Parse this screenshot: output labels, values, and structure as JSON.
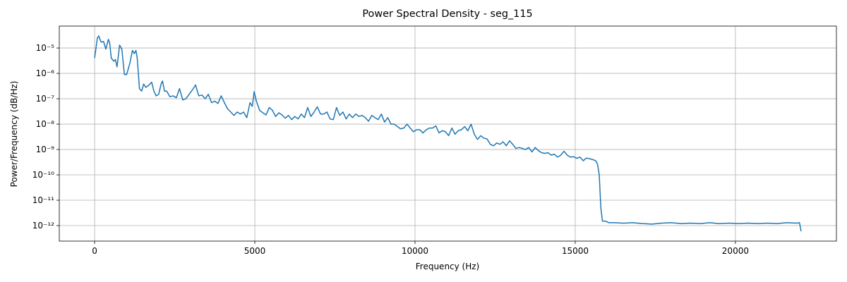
{
  "chart_data": {
    "type": "line",
    "title": "Power Spectral Density - seg_115",
    "x_label": "Frequency (Hz)",
    "y_label": "Power/Frequency (dB/Hz)",
    "y_scale": "log",
    "grid": true,
    "color": "#1f77b4",
    "xlim": [
      -1102.5,
      23152.5
    ],
    "ylim": [
      2.45e-13,
      7.3e-05
    ],
    "xticks": [
      0,
      5000,
      10000,
      15000,
      20000
    ],
    "yticks": [
      {
        "value": 1e-12,
        "label": "10⁻¹²"
      },
      {
        "value": 1e-11,
        "label": "10⁻¹¹"
      },
      {
        "value": 1e-10,
        "label": "10⁻¹⁰"
      },
      {
        "value": 1e-09,
        "label": "10⁻⁹"
      },
      {
        "value": 1e-08,
        "label": "10⁻⁸"
      },
      {
        "value": 1e-07,
        "label": "10⁻⁷"
      },
      {
        "value": 1e-06,
        "label": "10⁻⁶"
      },
      {
        "value": 1e-05,
        "label": "10⁻⁵"
      }
    ],
    "x": [
      0,
      86,
      129,
      200,
      280,
      350,
      430,
      470,
      520,
      600,
      650,
      700,
      780,
      850,
      930,
      1000,
      1100,
      1180,
      1240,
      1290,
      1330,
      1400,
      1470,
      1530,
      1600,
      1700,
      1780,
      1850,
      1920,
      2000,
      2080,
      2120,
      2180,
      2250,
      2350,
      2450,
      2550,
      2650,
      2750,
      2850,
      2950,
      3050,
      3150,
      3250,
      3350,
      3450,
      3550,
      3650,
      3750,
      3850,
      3950,
      4050,
      4150,
      4250,
      4350,
      4450,
      4550,
      4650,
      4750,
      4850,
      4920,
      4980,
      5050,
      5150,
      5250,
      5350,
      5450,
      5550,
      5650,
      5750,
      5850,
      5950,
      6050,
      6150,
      6250,
      6350,
      6450,
      6550,
      6650,
      6750,
      6850,
      6950,
      7050,
      7150,
      7250,
      7350,
      7450,
      7550,
      7650,
      7750,
      7850,
      7950,
      8050,
      8150,
      8250,
      8350,
      8450,
      8550,
      8650,
      8750,
      8850,
      8950,
      9050,
      9150,
      9250,
      9350,
      9450,
      9550,
      9650,
      9750,
      9850,
      9950,
      10050,
      10150,
      10250,
      10350,
      10450,
      10550,
      10650,
      10750,
      10850,
      10950,
      11050,
      11150,
      11250,
      11350,
      11450,
      11550,
      11650,
      11750,
      11850,
      11950,
      12050,
      12150,
      12250,
      12350,
      12450,
      12550,
      12650,
      12750,
      12850,
      12950,
      13050,
      13150,
      13250,
      13350,
      13450,
      13550,
      13650,
      13750,
      13850,
      13950,
      14050,
      14150,
      14250,
      14350,
      14450,
      14550,
      14650,
      14750,
      14850,
      14950,
      15050,
      15150,
      15250,
      15350,
      15450,
      15550,
      15650,
      15700,
      15750,
      15800,
      15850,
      15950,
      16050,
      16200,
      16500,
      16800,
      17100,
      17400,
      17700,
      18000,
      18300,
      18600,
      18900,
      19200,
      19500,
      19800,
      20100,
      20400,
      20700,
      21000,
      21300,
      21600,
      21900,
      22000,
      22050
    ],
    "values": [
      4e-06,
      2.5e-05,
      3e-05,
      1.7e-05,
      1.8e-05,
      9e-06,
      2.2e-05,
      1.6e-05,
      4e-06,
      3e-06,
      3.5e-06,
      1.8e-06,
      1.3e-05,
      9e-06,
      9e-07,
      9e-07,
      2.5e-06,
      8e-06,
      6e-06,
      8e-06,
      4e-06,
      2.5e-07,
      2e-07,
      3.8e-07,
      2.8e-07,
      3.5e-07,
      4.5e-07,
      2e-07,
      1.3e-07,
      1.5e-07,
      4e-07,
      5e-07,
      2e-07,
      2e-07,
      1.2e-07,
      1.3e-07,
      1.1e-07,
      2.5e-07,
      9e-08,
      1e-07,
      1.5e-07,
      2.2e-07,
      3.5e-07,
      1.3e-07,
      1.4e-07,
      1e-07,
      1.5e-07,
      7e-08,
      8e-08,
      6.5e-08,
      1.3e-07,
      7e-08,
      4e-08,
      3e-08,
      2.2e-08,
      3e-08,
      2.5e-08,
      3e-08,
      1.8e-08,
      7e-08,
      5e-08,
      1.9e-07,
      8e-08,
      3.5e-08,
      2.8e-08,
      2.3e-08,
      4.5e-08,
      3.5e-08,
      2e-08,
      2.8e-08,
      2.3e-08,
      1.7e-08,
      2.2e-08,
      1.5e-08,
      2e-08,
      1.6e-08,
      2.5e-08,
      1.8e-08,
      4.5e-08,
      2e-08,
      3e-08,
      4.8e-08,
      2.5e-08,
      2.5e-08,
      3e-08,
      1.6e-08,
      1.5e-08,
      4.5e-08,
      2.2e-08,
      3e-08,
      1.6e-08,
      2.5e-08,
      1.8e-08,
      2.5e-08,
      2e-08,
      2.2e-08,
      1.8e-08,
      1.3e-08,
      2.2e-08,
      1.8e-08,
      1.5e-08,
      2.5e-08,
      1.2e-08,
      1.8e-08,
      1e-08,
      1e-08,
      8e-09,
      6.5e-09,
      7e-09,
      1e-08,
      7e-09,
      5e-09,
      6e-09,
      6e-09,
      4.5e-09,
      6e-09,
      7e-09,
      7e-09,
      8.5e-09,
      4.5e-09,
      5.5e-09,
      5e-09,
      3.5e-09,
      7e-09,
      4e-09,
      5.5e-09,
      6e-09,
      8e-09,
      5.5e-09,
      1e-08,
      4e-09,
      2.5e-09,
      3.5e-09,
      2.8e-09,
      2.6e-09,
      1.6e-09,
      1.4e-09,
      1.8e-09,
      1.6e-09,
      2e-09,
      1.4e-09,
      2.2e-09,
      1.6e-09,
      1.1e-09,
      1.2e-09,
      1.1e-09,
      1e-09,
      1.2e-09,
      8e-10,
      1.2e-09,
      9e-10,
      7.5e-10,
      7e-10,
      7.5e-10,
      6e-10,
      6.5e-10,
      5e-10,
      6e-10,
      8.5e-10,
      6e-10,
      5e-10,
      5.2e-10,
      4.5e-10,
      5e-10,
      3.6e-10,
      4.6e-10,
      4.3e-10,
      4e-10,
      3.5e-10,
      2.5e-10,
      1e-10,
      5e-12,
      1.5e-12,
      1.5e-12,
      1.3e-12,
      1.3e-12,
      1.25e-12,
      1.3e-12,
      1.2e-12,
      1.15e-12,
      1.25e-12,
      1.3e-12,
      1.2e-12,
      1.25e-12,
      1.2e-12,
      1.3e-12,
      1.2e-12,
      1.25e-12,
      1.2e-12,
      1.25e-12,
      1.2e-12,
      1.25e-12,
      1.2e-12,
      1.3e-12,
      1.25e-12,
      1.3e-12,
      6e-13
    ]
  }
}
